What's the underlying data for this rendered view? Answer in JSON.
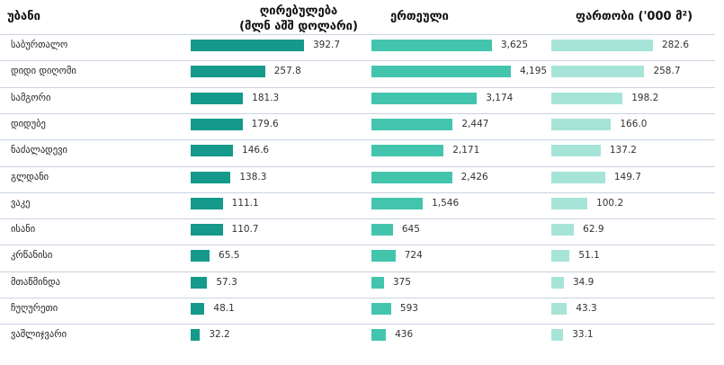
{
  "headers": {
    "district": "უბანი",
    "value_line1": "ღირებულება",
    "value_line2": "(მლნ აშშ დოლარი)",
    "units": "ერთეული",
    "area": "ფართობი ('000 მ²)"
  },
  "colors": {
    "value_bar": "#14998a",
    "units_bar": "#43c5ad",
    "area_bar": "#a6e4d8",
    "grid": "#c9d3e0"
  },
  "chart_data": {
    "type": "bar",
    "orientation": "horizontal",
    "categories": [
      "საბურთალო",
      "დიდი დიღომი",
      "სამგორი",
      "დიდუბე",
      "ნაძალადევი",
      "გლდანი",
      "ვაკე",
      "ისანი",
      "კრწანისი",
      "მთაწმინდა",
      "ჩუღურეთი",
      "ვაშლიჯვარი"
    ],
    "series": [
      {
        "name": "ღირებულება (მლნ აშშ დოლარი)",
        "values": [
          392.7,
          257.8,
          181.3,
          179.6,
          146.6,
          138.3,
          111.1,
          110.7,
          65.5,
          57.3,
          48.1,
          32.2
        ],
        "labels": [
          "392.7",
          "257.8",
          "181.3",
          "179.6",
          "146.6",
          "138.3",
          "111.1",
          "110.7",
          "65.5",
          "57.3",
          "48.1",
          "32.2"
        ]
      },
      {
        "name": "ერთეული",
        "values": [
          3625,
          4195,
          3174,
          2447,
          2171,
          2426,
          1546,
          645,
          724,
          375,
          593,
          436
        ],
        "labels": [
          "3,625",
          "4,195",
          "3,174",
          "2,447",
          "2,171",
          "2,426",
          "1,546",
          "645",
          "724",
          "375",
          "593",
          "436"
        ]
      },
      {
        "name": "ფართობი ('000 მ²)",
        "values": [
          282.6,
          258.7,
          198.2,
          166.0,
          137.2,
          149.7,
          100.2,
          62.9,
          51.1,
          34.9,
          43.3,
          33.1
        ],
        "labels": [
          "282.6",
          "258.7",
          "198.2",
          "166.0",
          "137.2",
          "149.7",
          "100.2",
          "62.9",
          "51.1",
          "34.9",
          "43.3",
          "33.1"
        ]
      }
    ]
  }
}
